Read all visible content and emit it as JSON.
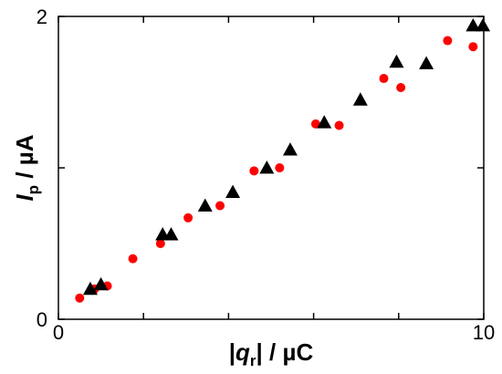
{
  "chart_data": {
    "type": "scatter",
    "xlim": [
      0,
      10
    ],
    "ylim": [
      0,
      2
    ],
    "x_ticks": [
      0,
      10
    ],
    "x_ticks_minor": [
      2,
      4,
      6,
      8
    ],
    "y_ticks": [
      0,
      2
    ],
    "y_ticks_minor": [
      1
    ],
    "xlabel": {
      "pre": "|",
      "var": "q",
      "sub": "r",
      "post": "| / µC"
    },
    "ylabel": {
      "var": "I",
      "sub": "p",
      "post": " / µA"
    },
    "grid": false,
    "series": [
      {
        "marker": "circle",
        "color": "#ff0000",
        "points": [
          [
            0.5,
            0.14
          ],
          [
            0.85,
            0.2
          ],
          [
            1.15,
            0.22
          ],
          [
            1.75,
            0.4
          ],
          [
            2.4,
            0.5
          ],
          [
            3.05,
            0.67
          ],
          [
            3.8,
            0.75
          ],
          [
            4.6,
            0.98
          ],
          [
            5.2,
            1.0
          ],
          [
            6.05,
            1.29
          ],
          [
            6.6,
            1.28
          ],
          [
            7.65,
            1.59
          ],
          [
            8.05,
            1.53
          ],
          [
            9.15,
            1.84
          ],
          [
            9.75,
            1.8
          ]
        ]
      },
      {
        "marker": "triangle",
        "color": "#000000",
        "points": [
          [
            0.75,
            0.2
          ],
          [
            1.0,
            0.23
          ],
          [
            2.45,
            0.56
          ],
          [
            2.65,
            0.56
          ],
          [
            3.45,
            0.75
          ],
          [
            4.1,
            0.84
          ],
          [
            4.9,
            1.0
          ],
          [
            5.45,
            1.12
          ],
          [
            6.25,
            1.3
          ],
          [
            7.1,
            1.45
          ],
          [
            7.95,
            1.7
          ],
          [
            8.65,
            1.69
          ],
          [
            9.75,
            1.94
          ],
          [
            9.98,
            1.94
          ]
        ]
      }
    ]
  }
}
